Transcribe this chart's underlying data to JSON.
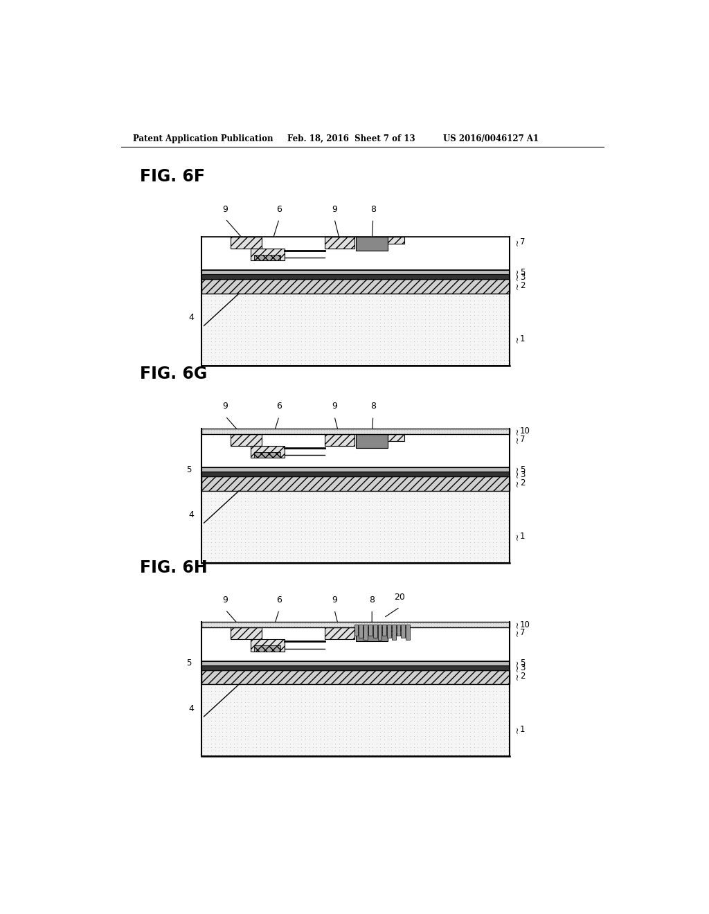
{
  "bg_color": "#ffffff",
  "header_left": "Patent Application Publication",
  "header_mid": "Feb. 18, 2016  Sheet 7 of 13",
  "header_right": "US 2016/0046127 A1"
}
